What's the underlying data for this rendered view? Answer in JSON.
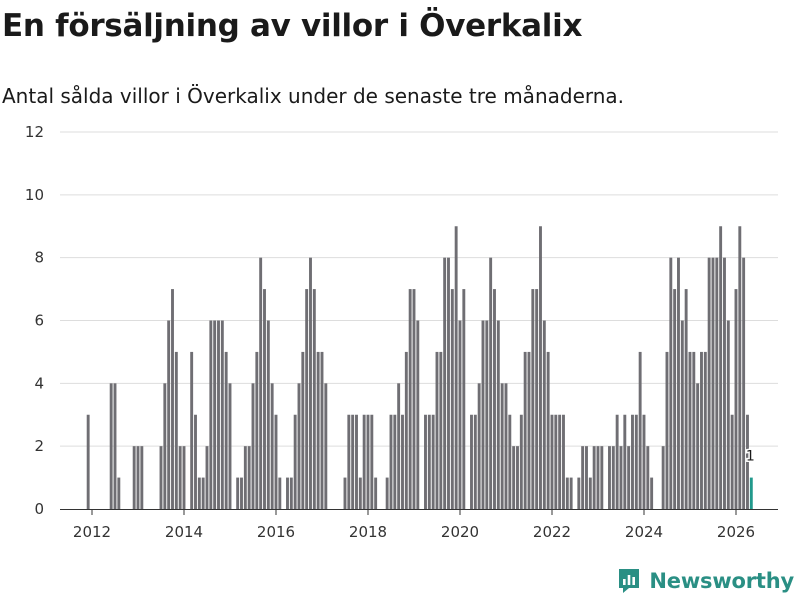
{
  "title": "En försäljning av villor i Överkalix",
  "subtitle": "Antal sålda villor i Överkalix under de senaste tre månaderna.",
  "logo": {
    "text": "Newsworthy",
    "icon": "newsworthy-logo-icon"
  },
  "colors": {
    "bar": "#6f6e73",
    "highlight": "#22998c",
    "grid": "#dddddd",
    "brand": "#2a8f84"
  },
  "chart_data": {
    "type": "bar",
    "title": "En försäljning av villor i Överkalix",
    "subtitle": "Antal sålda villor i Överkalix under de senaste tre månaderna.",
    "xlabel": "",
    "ylabel": "",
    "ylim": [
      0,
      12
    ],
    "yticks": [
      0,
      2,
      4,
      6,
      8,
      10,
      12
    ],
    "xticks": [
      2012,
      2014,
      2016,
      2018,
      2020,
      2022,
      2024,
      2026
    ],
    "x_start": 2011.9167,
    "x_step": 0.08333,
    "values": [
      3,
      0,
      0,
      0,
      0,
      0,
      4,
      4,
      1,
      0,
      0,
      0,
      2,
      2,
      2,
      0,
      0,
      0,
      0,
      2,
      4,
      6,
      7,
      5,
      2,
      2,
      0,
      5,
      3,
      1,
      1,
      2,
      6,
      6,
      6,
      6,
      5,
      4,
      0,
      1,
      1,
      2,
      2,
      4,
      5,
      8,
      7,
      6,
      4,
      3,
      1,
      0,
      1,
      1,
      3,
      4,
      5,
      7,
      8,
      7,
      5,
      5,
      4,
      0,
      0,
      0,
      0,
      1,
      3,
      3,
      3,
      1,
      3,
      3,
      3,
      1,
      0,
      0,
      1,
      3,
      3,
      4,
      3,
      5,
      7,
      7,
      6,
      0,
      3,
      3,
      3,
      5,
      5,
      8,
      8,
      7,
      9,
      6,
      7,
      0,
      3,
      3,
      4,
      6,
      6,
      8,
      7,
      6,
      4,
      4,
      3,
      2,
      2,
      3,
      5,
      5,
      7,
      7,
      9,
      6,
      5,
      3,
      3,
      3,
      3,
      1,
      1,
      0,
      1,
      2,
      2,
      1,
      2,
      2,
      2,
      0,
      2,
      2,
      3,
      2,
      3,
      2,
      3,
      3,
      5,
      3,
      2,
      1,
      0,
      0,
      2,
      5,
      8,
      7,
      8,
      6,
      7,
      5,
      5,
      4,
      5,
      5,
      8,
      8,
      8,
      9,
      8,
      6,
      3,
      7,
      9,
      8,
      3,
      1
    ],
    "highlight_index": 173,
    "annotations": [
      {
        "index": 173,
        "text": "1"
      }
    ]
  }
}
